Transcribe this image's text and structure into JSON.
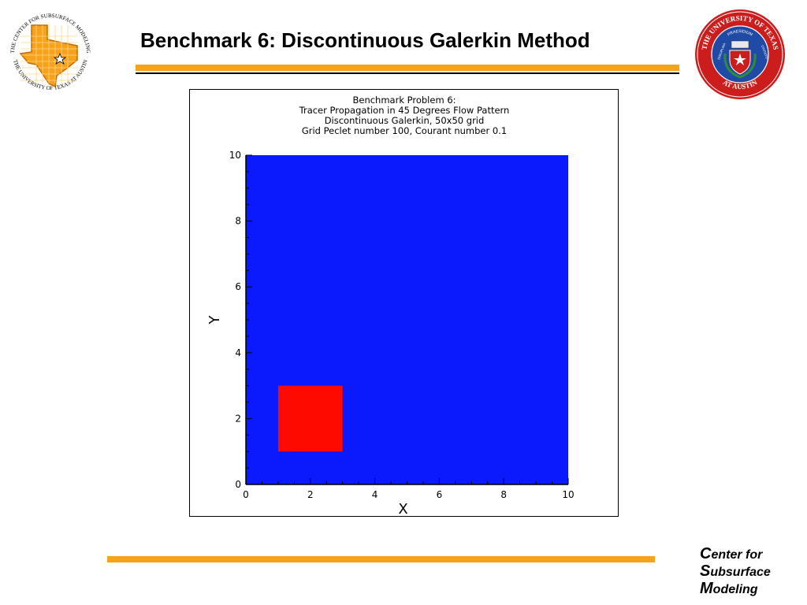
{
  "slide": {
    "title": "Benchmark 6: Discontinuous Galerkin Method"
  },
  "logos": {
    "left_text_top": "THE CENTER FOR SUBSURFACE MODELING",
    "left_text_bottom": "THE UNIVERSITY OF TEXAS AT AUSTIN",
    "right_ring_top": "THE UNIVERSITY OF TEXAS",
    "right_ring_bottom": "AT AUSTIN",
    "right_inner_top": "PRAESIDIUM",
    "right_inner_left": "DISCIPLINA",
    "right_inner_right": "CIVITATIS"
  },
  "brand": {
    "line1_initial": "C",
    "line1_rest": "enter for",
    "line2_initial": "S",
    "line2_rest": "ubsurface",
    "line3_initial": "M",
    "line3_rest": "odeling"
  },
  "colors": {
    "accent_orange": "#f7a21b",
    "domain_blue": "#0a1afc",
    "tracer_red": "#ff0a00",
    "seal_red": "#cc1d1d",
    "seal_blue": "#1f4ba6"
  },
  "chart_data": {
    "type": "heatmap",
    "title_lines": [
      "Benchmark Problem 6:",
      "Tracer Propagation in 45 Degrees Flow Pattern",
      "Discontinuous Galerkin, 50x50 grid",
      "Grid Peclet number 100, Courant number 0.1"
    ],
    "xlabel": "X",
    "ylabel": "Y",
    "xlim": [
      0,
      10
    ],
    "ylim": [
      0,
      10
    ],
    "x_ticks": [
      "0",
      "2",
      "4",
      "6",
      "8",
      "10"
    ],
    "y_ticks": [
      "0",
      "2",
      "4",
      "6",
      "8",
      "10"
    ],
    "grid": false,
    "background_region": {
      "x": [
        0,
        10
      ],
      "y": [
        0,
        10
      ],
      "value": "low"
    },
    "tracer_region": {
      "x": [
        1,
        3
      ],
      "y": [
        1,
        3
      ],
      "value": "high"
    }
  }
}
